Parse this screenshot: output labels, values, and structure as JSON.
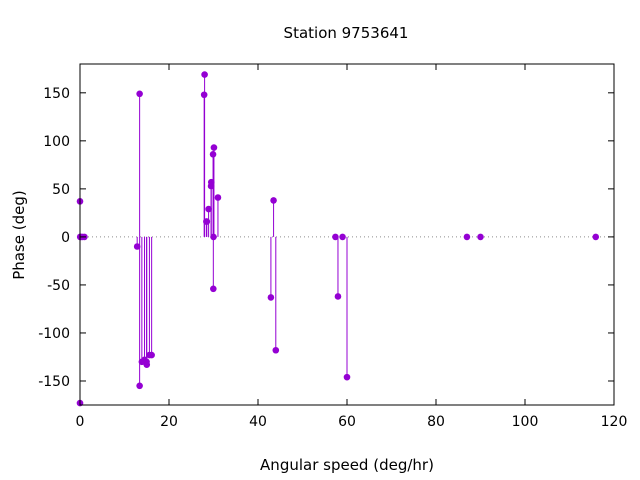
{
  "chart_data": {
    "type": "scatter",
    "style": "impulses-with-points",
    "title": "Station 9753641",
    "xlabel": "Angular speed (deg/hr)",
    "ylabel": "Phase (deg)",
    "xlim": [
      0,
      120
    ],
    "ylim": [
      -175,
      180
    ],
    "xticks": [
      0,
      20,
      40,
      60,
      80,
      100,
      120
    ],
    "yticks": [
      -150,
      -100,
      -50,
      0,
      50,
      100,
      150
    ],
    "zero_line": true,
    "grid": false,
    "color": "#9400d3",
    "points": [
      {
        "x": 0.0,
        "y": 37
      },
      {
        "x": 0.0,
        "y": -173
      },
      {
        "x": 0.04,
        "y": 0
      },
      {
        "x": 0.08,
        "y": 0
      },
      {
        "x": 0.5,
        "y": 0
      },
      {
        "x": 1.0,
        "y": 0
      },
      {
        "x": 12.85,
        "y": -10
      },
      {
        "x": 13.4,
        "y": -155
      },
      {
        "x": 13.4,
        "y": 149
      },
      {
        "x": 13.9,
        "y": -130
      },
      {
        "x": 14.5,
        "y": -128
      },
      {
        "x": 14.96,
        "y": -130
      },
      {
        "x": 15.0,
        "y": -133
      },
      {
        "x": 15.6,
        "y": -123
      },
      {
        "x": 16.1,
        "y": -123
      },
      {
        "x": 27.9,
        "y": 148
      },
      {
        "x": 28.0,
        "y": 169
      },
      {
        "x": 28.4,
        "y": 16
      },
      {
        "x": 28.5,
        "y": 16
      },
      {
        "x": 28.9,
        "y": 29
      },
      {
        "x": 29.45,
        "y": 53
      },
      {
        "x": 29.5,
        "y": 57
      },
      {
        "x": 29.9,
        "y": 86
      },
      {
        "x": 29.96,
        "y": -54
      },
      {
        "x": 30.0,
        "y": 0
      },
      {
        "x": 30.1,
        "y": 93
      },
      {
        "x": 31.0,
        "y": 41
      },
      {
        "x": 42.9,
        "y": -63
      },
      {
        "x": 43.5,
        "y": 38
      },
      {
        "x": 44.0,
        "y": -118
      },
      {
        "x": 57.4,
        "y": 0
      },
      {
        "x": 57.97,
        "y": -62
      },
      {
        "x": 59.0,
        "y": 0
      },
      {
        "x": 60.0,
        "y": -146
      },
      {
        "x": 86.95,
        "y": 0
      },
      {
        "x": 90.0,
        "y": 0
      },
      {
        "x": 115.9,
        "y": 0
      }
    ]
  }
}
